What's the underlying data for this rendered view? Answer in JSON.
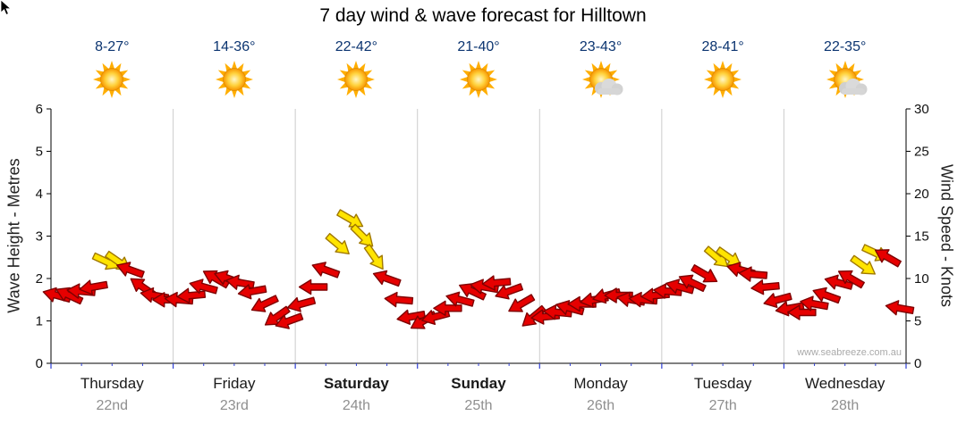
{
  "title": "7 day wind & wave forecast for Hilltown",
  "watermark": "www.seabreeze.com.au",
  "icons": {
    "cursor": "mouse-pointer",
    "sun": "sun",
    "sun_cloud": "sun-behind-cloud"
  },
  "days": [
    {
      "name": "Thursday",
      "date": "22nd",
      "temp": "8-27°",
      "icon": "sun",
      "bold": false
    },
    {
      "name": "Friday",
      "date": "23rd",
      "temp": "14-36°",
      "icon": "sun",
      "bold": false
    },
    {
      "name": "Saturday",
      "date": "24th",
      "temp": "22-42°",
      "icon": "sun",
      "bold": true
    },
    {
      "name": "Sunday",
      "date": "25th",
      "temp": "21-40°",
      "icon": "sun",
      "bold": true
    },
    {
      "name": "Monday",
      "date": "26th",
      "temp": "23-43°",
      "icon": "sun-cloud",
      "bold": false
    },
    {
      "name": "Tuesday",
      "date": "27th",
      "temp": "28-41°",
      "icon": "sun",
      "bold": false
    },
    {
      "name": "Wednesday",
      "date": "28th",
      "temp": "22-35°",
      "icon": "sun-cloud",
      "bold": false
    }
  ],
  "colors": {
    "arrow_red": "#e60000",
    "arrow_red_outline": "#7e0000",
    "arrow_yellow": "#ffe400",
    "arrow_yellow_outline": "#a07800",
    "temp_text": "#0b3470",
    "day_text": "#1a1a1a",
    "date_text": "#8f8f8f",
    "axis_text": "#111111",
    "grid": "#cccccc",
    "axis": "#000000",
    "tick_blue": "#2f3fd3",
    "watermark_text": "#aaaaaa"
  },
  "chart_data": {
    "type": "scatter",
    "title": "7 day wind & wave forecast for Hilltown",
    "x_categories": [
      "Thursday 22nd",
      "Friday 23rd",
      "Saturday 24th",
      "Sunday 25th",
      "Monday 26th",
      "Tuesday 27th",
      "Wednesday 28th"
    ],
    "points_per_day": 10,
    "left_axis": {
      "label": "Wave Height - Metres",
      "range": [
        0,
        6
      ],
      "ticks": [
        0,
        1,
        2,
        3,
        4,
        5,
        6
      ]
    },
    "right_axis": {
      "label": "Wind Speed - Knots",
      "range": [
        0,
        30
      ],
      "ticks": [
        0,
        5,
        10,
        15,
        20,
        25,
        30
      ]
    },
    "series": [
      {
        "name": "Wind speed & direction arrows",
        "unit": "knots",
        "knots": [
          8,
          8,
          8.5,
          9,
          12,
          12,
          11,
          9,
          8,
          7.5,
          7.5,
          8,
          9,
          10,
          10,
          9.5,
          8.5,
          7,
          5.5,
          5,
          7,
          9,
          11,
          14,
          17,
          15,
          12.5,
          10,
          7.5,
          5.5,
          5,
          5.5,
          6.5,
          7.5,
          8.5,
          9,
          9.5,
          8.5,
          7,
          5.5,
          5.5,
          6,
          6.5,
          7,
          7.5,
          8,
          8,
          7.5,
          7.5,
          8,
          8.5,
          9,
          9.5,
          10.5,
          12.5,
          12.5,
          11,
          10.5,
          9,
          7.5,
          6.5,
          6,
          7,
          8,
          9.5,
          10,
          11.5,
          13,
          12.5,
          6.5
        ],
        "direction_deg": [
          195,
          205,
          185,
          170,
          25,
          35,
          200,
          215,
          190,
          180,
          185,
          175,
          195,
          210,
          200,
          190,
          170,
          155,
          145,
          160,
          165,
          180,
          200,
          40,
          30,
          45,
          55,
          200,
          185,
          170,
          150,
          165,
          180,
          195,
          205,
          190,
          175,
          160,
          150,
          140,
          175,
          185,
          195,
          180,
          170,
          165,
          180,
          190,
          185,
          175,
          185,
          195,
          205,
          30,
          40,
          35,
          195,
          185,
          175,
          165,
          170,
          180,
          190,
          200,
          195,
          210,
          35,
          25,
          210,
          190
        ],
        "color": [
          "red",
          "red",
          "red",
          "red",
          "yellow",
          "yellow",
          "red",
          "red",
          "red",
          "red",
          "red",
          "red",
          "red",
          "red",
          "red",
          "red",
          "red",
          "red",
          "red",
          "red",
          "red",
          "red",
          "red",
          "yellow",
          "yellow",
          "yellow",
          "yellow",
          "red",
          "red",
          "red",
          "red",
          "red",
          "red",
          "red",
          "red",
          "red",
          "red",
          "red",
          "red",
          "red",
          "red",
          "red",
          "red",
          "red",
          "red",
          "red",
          "red",
          "red",
          "red",
          "red",
          "red",
          "red",
          "red",
          "red",
          "yellow",
          "yellow",
          "red",
          "red",
          "red",
          "red",
          "red",
          "red",
          "red",
          "red",
          "red",
          "red",
          "yellow",
          "yellow",
          "red",
          "red"
        ]
      }
    ]
  }
}
